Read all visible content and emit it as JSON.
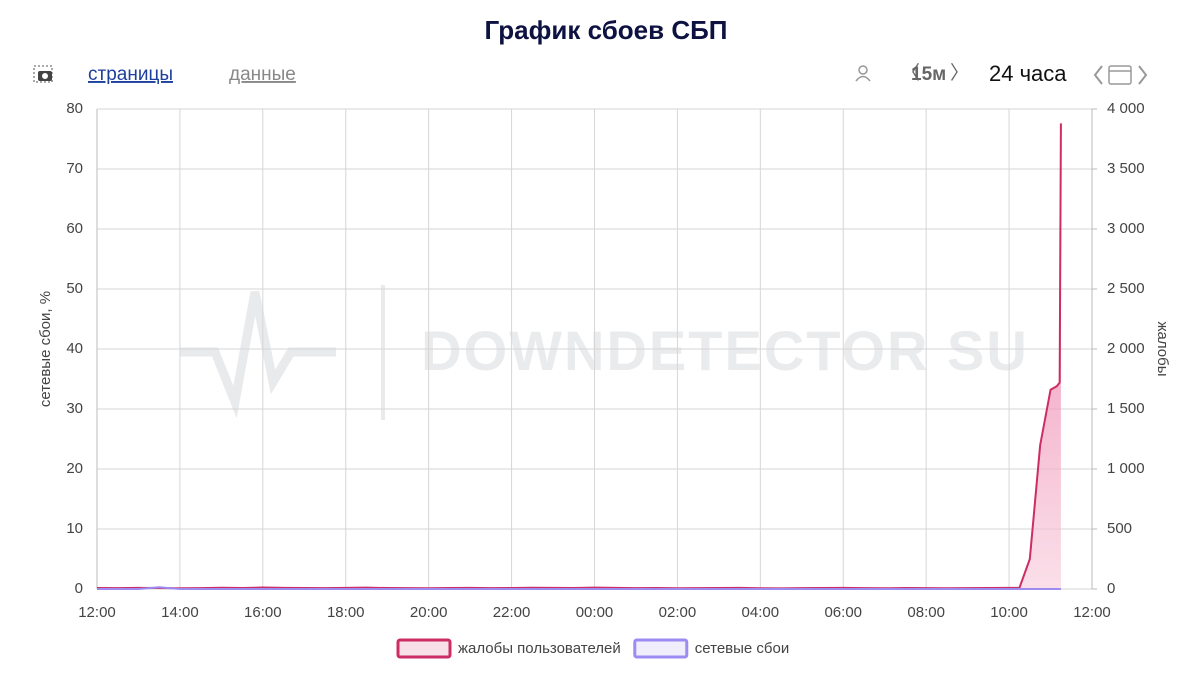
{
  "toolbar": {
    "pages": "страницы",
    "data": "данные",
    "interval": "15м",
    "range": "24 часа"
  },
  "chart_data": {
    "type": "line",
    "title": "График сбоев СБП",
    "watermark": "DOWNDETECTOR SU",
    "y_label": "сетевые сбои, %",
    "y2_label": "жалобы",
    "x": [
      0,
      0.5,
      1,
      1.5,
      2,
      2.5,
      3,
      3.5,
      4,
      4.5,
      5,
      5.5,
      6,
      6.5,
      7,
      7.5,
      8,
      8.5,
      9,
      9.5,
      10,
      10.5,
      11,
      11.5,
      12,
      12.5,
      13,
      13.5,
      14,
      14.5,
      15,
      15.5,
      16,
      16.5,
      17,
      17.5,
      18,
      18.5,
      19,
      19.5,
      20,
      20.5,
      21,
      21.5,
      22,
      22.25,
      22.5,
      22.75,
      23,
      23.15,
      23.22,
      23.25
    ],
    "series": [
      {
        "name": "жалобы пользователей",
        "color": "#cc2d64",
        "axis": "y2",
        "values": [
          8,
          7,
          9,
          8,
          6,
          7,
          10,
          8,
          12,
          9,
          8,
          7,
          9,
          11,
          8,
          7,
          6,
          8,
          9,
          7,
          8,
          10,
          9,
          8,
          11,
          9,
          7,
          8,
          6,
          7,
          8,
          9,
          6,
          5,
          7,
          8,
          9,
          7,
          6,
          8,
          7,
          6,
          7,
          8,
          9,
          10,
          250,
          1200,
          1660,
          1690,
          1720,
          3880
        ]
      },
      {
        "name": "сетевые сбои",
        "color": "#9c8cf2",
        "values": [
          0,
          0,
          0,
          0.3,
          0,
          0,
          0,
          0,
          0,
          0,
          0,
          0,
          0,
          0,
          0,
          0,
          0,
          0,
          0,
          0,
          0,
          0,
          0,
          0,
          0,
          0,
          0,
          0,
          0,
          0,
          0,
          0,
          0,
          0,
          0,
          0,
          0,
          0,
          0,
          0,
          0,
          0,
          0,
          0,
          0,
          0,
          0,
          0,
          0,
          0,
          0,
          0
        ]
      }
    ],
    "xlim": [
      0,
      24
    ],
    "xticks": [
      {
        "value": 0,
        "label": "12:00"
      },
      {
        "value": 2,
        "label": "14:00"
      },
      {
        "value": 4,
        "label": "16:00"
      },
      {
        "value": 6,
        "label": "18:00"
      },
      {
        "value": 8,
        "label": "20:00"
      },
      {
        "value": 10,
        "label": "22:00"
      },
      {
        "value": 12,
        "label": "00:00"
      },
      {
        "value": 14,
        "label": "02:00"
      },
      {
        "value": 16,
        "label": "04:00"
      },
      {
        "value": 18,
        "label": "06:00"
      },
      {
        "value": 20,
        "label": "08:00"
      },
      {
        "value": 22,
        "label": "10:00"
      },
      {
        "value": 24,
        "label": "12:00"
      }
    ],
    "ylim": [
      0,
      80
    ],
    "yticks": [
      0,
      10,
      20,
      30,
      40,
      50,
      60,
      70,
      80
    ],
    "y2lim": [
      0,
      4000
    ],
    "y2ticks": [
      0,
      500,
      {
        "value": 1000,
        "label": "1 000"
      },
      {
        "value": 1500,
        "label": "1 500"
      },
      {
        "value": 2000,
        "label": "2 000"
      },
      {
        "value": 2500,
        "label": "2 500"
      },
      {
        "value": 3000,
        "label": "3 000"
      },
      {
        "value": 3500,
        "label": "3 500"
      },
      {
        "value": 4000,
        "label": "4 000"
      }
    ],
    "grid": true,
    "legend": "bottom"
  }
}
